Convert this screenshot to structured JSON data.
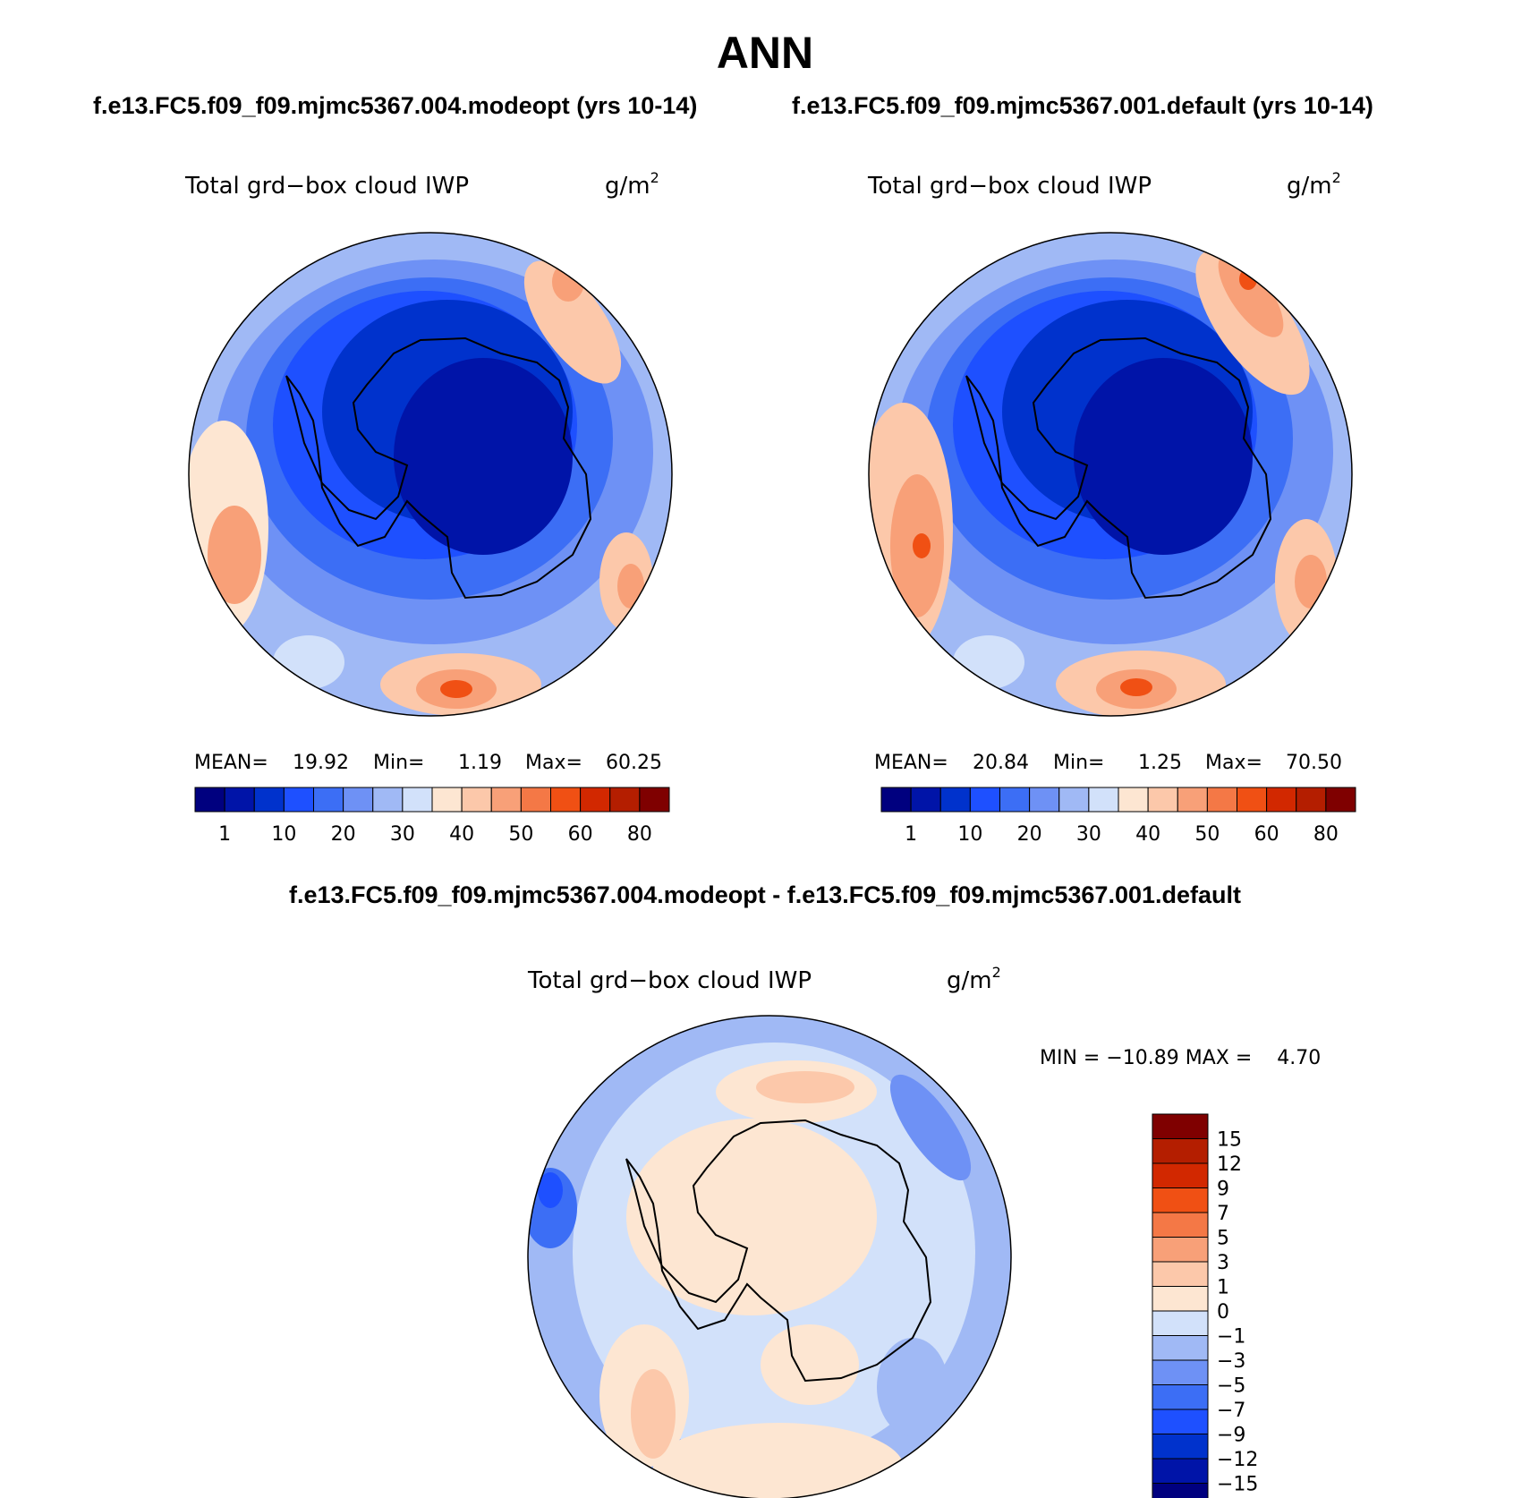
{
  "chart_data": {
    "type": "heatmap",
    "title": "ANN",
    "colors": {
      "pos_scale": [
        "#00007f",
        "#0014a8",
        "#0032cc",
        "#1e50ff",
        "#3c6ef5",
        "#6e91f5",
        "#a0b9f5",
        "#d2e1fa",
        "#fde6d2",
        "#fcc8aa",
        "#f8a078",
        "#f47846",
        "#f05014",
        "#d22800",
        "#b41e00",
        "#7f0000"
      ],
      "diff_scale": [
        "#00007f",
        "#0014a8",
        "#0032cc",
        "#1e50ff",
        "#3c6ef5",
        "#6e91f5",
        "#a0b9f5",
        "#d2e1fa",
        "#fde6d2",
        "#fcc8aa",
        "#f8a078",
        "#f47846",
        "#f05014",
        "#d22800",
        "#b41e00",
        "#7f0000"
      ],
      "land": "#0028b4"
    },
    "panels": [
      {
        "case": "f.e13.FC5.f09_f09.mjmc5367.004.modeopt (yrs 10-14)",
        "variable": "Total grd−box cloud IWP",
        "units_base": "g/m",
        "units_sup": "2",
        "stats": {
          "mean_label": "MEAN=",
          "mean": "19.92",
          "min_label": "Min=",
          "min": "1.19",
          "max_label": "Max=",
          "max": "60.25"
        },
        "levels": [
          "1",
          "10",
          "20",
          "30",
          "40",
          "50",
          "60",
          "80"
        ]
      },
      {
        "case": "f.e13.FC5.f09_f09.mjmc5367.001.default (yrs 10-14)",
        "variable": "Total grd−box cloud IWP",
        "units_base": "g/m",
        "units_sup": "2",
        "stats": {
          "mean_label": "MEAN=",
          "mean": "20.84",
          "min_label": "Min=",
          "min": "1.25",
          "max_label": "Max=",
          "max": "70.50"
        },
        "levels": [
          "1",
          "10",
          "20",
          "30",
          "40",
          "50",
          "60",
          "80"
        ]
      }
    ],
    "difference": {
      "title": "f.e13.FC5.f09_f09.mjmc5367.004.modeopt - f.e13.FC5.f09_f09.mjmc5367.001.default",
      "variable": "Total grd−box cloud IWP",
      "units_base": "g/m",
      "units_sup": "2",
      "stats": "MIN = −10.89 MAX =    4.70",
      "levels": [
        "15",
        "12",
        "9",
        "7",
        "5",
        "3",
        "1",
        "0",
        "−1",
        "−3",
        "−5",
        "−7",
        "−9",
        "−12",
        "−15"
      ]
    }
  }
}
